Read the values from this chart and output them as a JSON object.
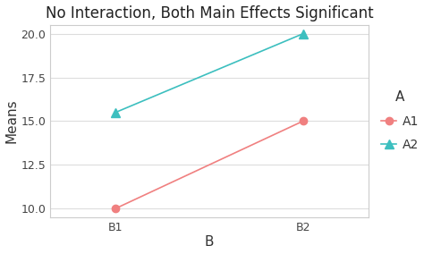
{
  "title": "No Interaction, Both Main Effects Significant",
  "xlabel": "B",
  "ylabel": "Means",
  "x_labels": [
    "B1",
    "B2"
  ],
  "x_positions": [
    1,
    2
  ],
  "A1_values": [
    10,
    15
  ],
  "A2_values": [
    15.5,
    20
  ],
  "A1_color": "#F08080",
  "A2_color": "#3CBFBF",
  "ylim": [
    9.5,
    20.5
  ],
  "yticks": [
    10.0,
    12.5,
    15.0,
    17.5,
    20.0
  ],
  "legend_title": "A",
  "legend_labels": [
    "A1",
    "A2"
  ],
  "background_color": "#FFFFFF",
  "panel_color": "#FFFFFF",
  "grid_color": "#DDDDDD",
  "panel_border_color": "#CCCCCC",
  "title_fontsize": 12,
  "axis_label_fontsize": 11,
  "tick_fontsize": 9,
  "legend_fontsize": 10,
  "legend_title_fontsize": 11
}
